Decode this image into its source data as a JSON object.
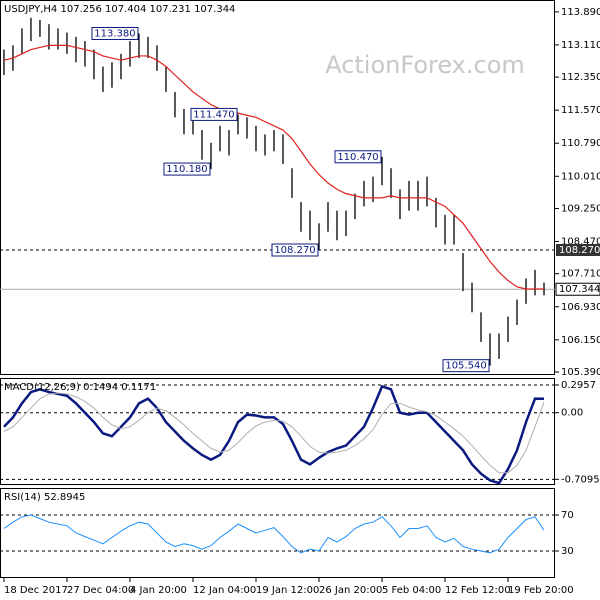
{
  "chart_data": [
    {
      "type": "ohlc",
      "title": "USDJPY,H4 107.256 107.404 107.231 107.344",
      "watermark": "ActionForex.com",
      "xlim": [
        -0.44,
        61.22
      ],
      "ylim": [
        105.32,
        114.17
      ],
      "xticks": [
        {
          "value": 0,
          "label": "18 Dec 2017"
        },
        {
          "value": 7,
          "label": "27 Dec 04:00"
        },
        {
          "value": 14,
          "label": "4 Jan 20:00"
        },
        {
          "value": 21,
          "label": "12 Jan 04:00"
        },
        {
          "value": 28,
          "label": "19 Jan 12:00"
        },
        {
          "value": 35,
          "label": "26 Jan 20:00"
        },
        {
          "value": 42,
          "label": "5 Feb 04:00"
        },
        {
          "value": 49,
          "label": "12 Feb 12:00"
        },
        {
          "value": 56,
          "label": "19 Feb 20:00"
        }
      ],
      "yticks": [
        {
          "value": 113.89,
          "label": "113.890"
        },
        {
          "value": 113.11,
          "label": "113.110"
        },
        {
          "value": 112.35,
          "label": "112.350"
        },
        {
          "value": 111.57,
          "label": "111.570"
        },
        {
          "value": 110.79,
          "label": "110.790"
        },
        {
          "value": 110.01,
          "label": "110.010"
        },
        {
          "value": 109.25,
          "label": "109.250"
        },
        {
          "value": 108.47,
          "label": "108.470"
        },
        {
          "value": 107.71,
          "label": "107.710"
        },
        {
          "value": 106.93,
          "label": "106.930"
        },
        {
          "value": 106.15,
          "label": "106.150"
        },
        {
          "value": 105.39,
          "label": "105.390"
        }
      ],
      "color": "#000000",
      "high": [
        113.0,
        113.1,
        113.5,
        113.75,
        113.7,
        113.6,
        113.5,
        113.4,
        113.3,
        113.2,
        113.0,
        112.6,
        112.7,
        112.9,
        113.2,
        113.38,
        113.3,
        113.1,
        112.6,
        112.0,
        111.6,
        111.5,
        111.1,
        110.8,
        111.2,
        111.1,
        111.47,
        111.4,
        111.2,
        111.0,
        111.1,
        111.0,
        110.2,
        109.4,
        109.2,
        108.9,
        109.4,
        109.2,
        109.2,
        109.6,
        109.9,
        110.0,
        110.47,
        110.2,
        109.7,
        109.9,
        109.9,
        110.0,
        109.5,
        109.1,
        109.1,
        108.2,
        107.5,
        106.8,
        106.3,
        106.3,
        106.7,
        107.1,
        107.6,
        107.8,
        107.5
      ],
      "low": [
        112.4,
        112.5,
        112.9,
        113.2,
        113.3,
        113.0,
        113.0,
        112.9,
        112.7,
        112.6,
        112.3,
        112.0,
        112.1,
        112.3,
        112.6,
        112.8,
        112.8,
        112.5,
        112.0,
        111.4,
        111.0,
        111.0,
        110.4,
        110.18,
        110.6,
        110.5,
        111.0,
        110.9,
        110.6,
        110.5,
        110.6,
        110.3,
        109.5,
        108.7,
        108.5,
        108.27,
        108.7,
        108.5,
        108.6,
        109.0,
        109.3,
        109.4,
        109.8,
        109.5,
        109.0,
        109.2,
        109.2,
        109.3,
        108.8,
        108.4,
        108.4,
        107.3,
        106.8,
        106.1,
        105.54,
        105.7,
        106.1,
        106.5,
        107.0,
        107.2,
        107.2
      ],
      "ma": {
        "color": "#e0201c",
        "values": [
          112.75,
          112.8,
          112.9,
          113.0,
          113.05,
          113.1,
          113.1,
          113.1,
          113.05,
          113.0,
          112.95,
          112.85,
          112.8,
          112.75,
          112.8,
          112.85,
          112.85,
          112.75,
          112.6,
          112.4,
          112.2,
          112.0,
          111.85,
          111.7,
          111.6,
          111.55,
          111.5,
          111.45,
          111.4,
          111.3,
          111.2,
          111.1,
          110.9,
          110.6,
          110.3,
          110.05,
          109.85,
          109.7,
          109.6,
          109.55,
          109.5,
          109.5,
          109.5,
          109.55,
          109.5,
          109.5,
          109.5,
          109.5,
          109.4,
          109.3,
          109.1,
          108.9,
          108.6,
          108.3,
          108.0,
          107.75,
          107.55,
          107.4,
          107.35,
          107.35,
          107.35
        ]
      },
      "annotations": [
        {
          "index": 15,
          "value": 113.38,
          "label": "113.380"
        },
        {
          "index": 26,
          "value": 111.47,
          "label": "111.470"
        },
        {
          "index": 23,
          "value": 110.18,
          "label": "110.180"
        },
        {
          "index": 42,
          "value": 110.47,
          "label": "110.470"
        },
        {
          "index": 35,
          "value": 108.27,
          "label": "108.270"
        },
        {
          "index": 54,
          "value": 105.54,
          "label": "105.540"
        }
      ],
      "level": {
        "value": 108.27,
        "label": "108.270"
      },
      "last": {
        "value": 107.344,
        "label": "107.344"
      }
    },
    {
      "type": "line",
      "title": "MACD(12,26,9) 0.1494 0.1171",
      "ylim": [
        -0.77,
        0.37
      ],
      "grid": true,
      "yticks": [
        0.2957,
        {
          "value": 0,
          "label": "0.00"
        },
        -0.7095
      ],
      "series": [
        {
          "color": "#0a1a80",
          "width": 2.5,
          "values": [
            -0.15,
            -0.05,
            0.1,
            0.22,
            0.25,
            0.22,
            0.2,
            0.18,
            0.1,
            0.0,
            -0.1,
            -0.22,
            -0.25,
            -0.15,
            -0.05,
            0.1,
            0.15,
            0.05,
            -0.1,
            -0.2,
            -0.3,
            -0.38,
            -0.45,
            -0.5,
            -0.45,
            -0.3,
            -0.1,
            -0.02,
            -0.03,
            -0.05,
            -0.05,
            -0.12,
            -0.3,
            -0.5,
            -0.55,
            -0.48,
            -0.42,
            -0.38,
            -0.35,
            -0.25,
            -0.15,
            0.05,
            0.28,
            0.25,
            0.0,
            -0.02,
            0.0,
            0.0,
            -0.1,
            -0.2,
            -0.3,
            -0.4,
            -0.55,
            -0.65,
            -0.72,
            -0.75,
            -0.6,
            -0.4,
            -0.1,
            0.15,
            0.1494
          ]
        },
        {
          "color": "#b0b0b0",
          "width": 1,
          "values": [
            -0.2,
            -0.15,
            -0.05,
            0.05,
            0.15,
            0.2,
            0.21,
            0.2,
            0.17,
            0.12,
            0.05,
            -0.05,
            -0.13,
            -0.17,
            -0.15,
            -0.08,
            0.0,
            0.05,
            0.02,
            -0.05,
            -0.13,
            -0.22,
            -0.3,
            -0.38,
            -0.42,
            -0.4,
            -0.32,
            -0.22,
            -0.14,
            -0.1,
            -0.08,
            -0.09,
            -0.15,
            -0.25,
            -0.36,
            -0.42,
            -0.43,
            -0.42,
            -0.4,
            -0.35,
            -0.28,
            -0.18,
            -0.02,
            0.1,
            0.1,
            0.06,
            0.03,
            0.01,
            -0.03,
            -0.1,
            -0.17,
            -0.25,
            -0.35,
            -0.46,
            -0.56,
            -0.64,
            -0.64,
            -0.56,
            -0.4,
            -0.15,
            0.1171
          ]
        }
      ]
    },
    {
      "type": "line",
      "title": "RSI(14) 52.8945",
      "ylim": [
        0,
        100
      ],
      "grid": true,
      "yticks": [
        70,
        30
      ],
      "series": [
        {
          "color": "#1e90ff",
          "width": 1,
          "values": [
            55,
            62,
            68,
            70,
            66,
            62,
            60,
            58,
            50,
            46,
            42,
            38,
            45,
            52,
            58,
            62,
            60,
            50,
            40,
            35,
            38,
            36,
            32,
            36,
            45,
            52,
            60,
            55,
            50,
            53,
            56,
            46,
            35,
            28,
            32,
            30,
            45,
            40,
            46,
            55,
            60,
            62,
            68,
            58,
            45,
            55,
            55,
            58,
            45,
            40,
            44,
            35,
            32,
            30,
            28,
            32,
            45,
            55,
            65,
            68,
            52.8945
          ]
        }
      ]
    }
  ]
}
